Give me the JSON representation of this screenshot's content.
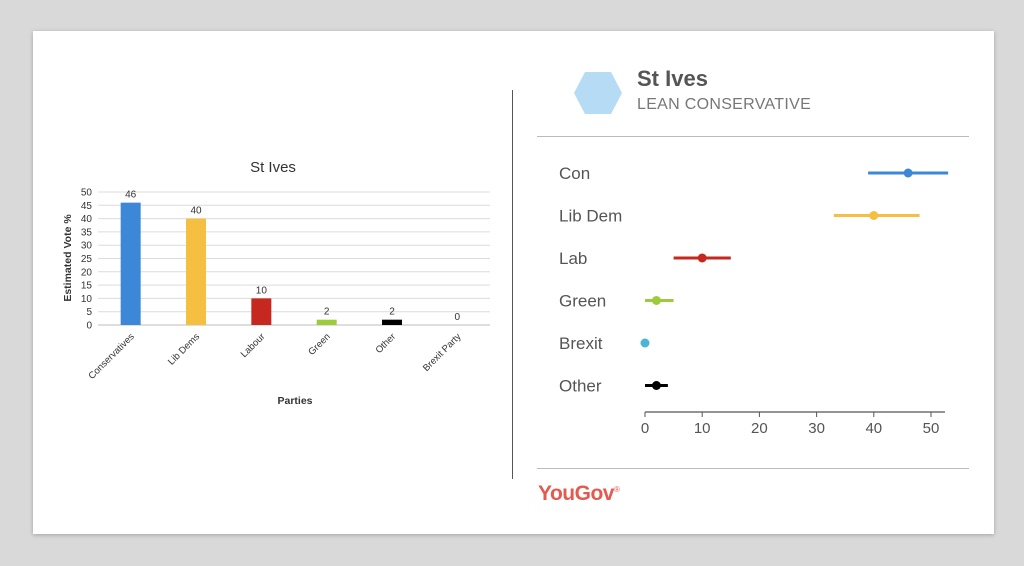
{
  "chart_data": [
    {
      "type": "bar",
      "title": "St Ives",
      "xlabel": "Parties",
      "ylabel": "Estimated Vote %",
      "ylim": [
        0,
        50
      ],
      "yticks": [
        0,
        5,
        10,
        15,
        20,
        25,
        30,
        35,
        40,
        45,
        50
      ],
      "grid": true,
      "categories": [
        "Conservatives",
        "Lib Dems",
        "Labour",
        "Green",
        "Other",
        "Brexit Party"
      ],
      "values": [
        46,
        40,
        10,
        2,
        2,
        0
      ],
      "colors": [
        "#3d87d8",
        "#f5bf42",
        "#c6281f",
        "#9ecb3c",
        "#000000",
        "#ffffff"
      ]
    },
    {
      "type": "scatter",
      "title": "St Ives",
      "subtitle": "LEAN CONSERVATIVE",
      "xlim": [
        0,
        50
      ],
      "xticks": [
        0,
        10,
        20,
        30,
        40,
        50
      ],
      "categories": [
        "Con",
        "Lib Dem",
        "Lab",
        "Green",
        "Brexit",
        "Other"
      ],
      "values": [
        46,
        40,
        10,
        2,
        0,
        2
      ],
      "low": [
        39,
        33,
        5,
        0,
        0,
        0
      ],
      "high": [
        53,
        48,
        15,
        5,
        0,
        4
      ],
      "colors": [
        "#3d87d8",
        "#f5bf42",
        "#c6281f",
        "#9ecb3c",
        "#4bb5d4",
        "#000000"
      ]
    }
  ],
  "header": {
    "title": "St Ives",
    "status": "LEAN CONSERVATIVE",
    "hex_color": "#b6dbf4"
  },
  "brand": {
    "name": "YouGov",
    "mark": "®",
    "color": "#e45a4f"
  }
}
